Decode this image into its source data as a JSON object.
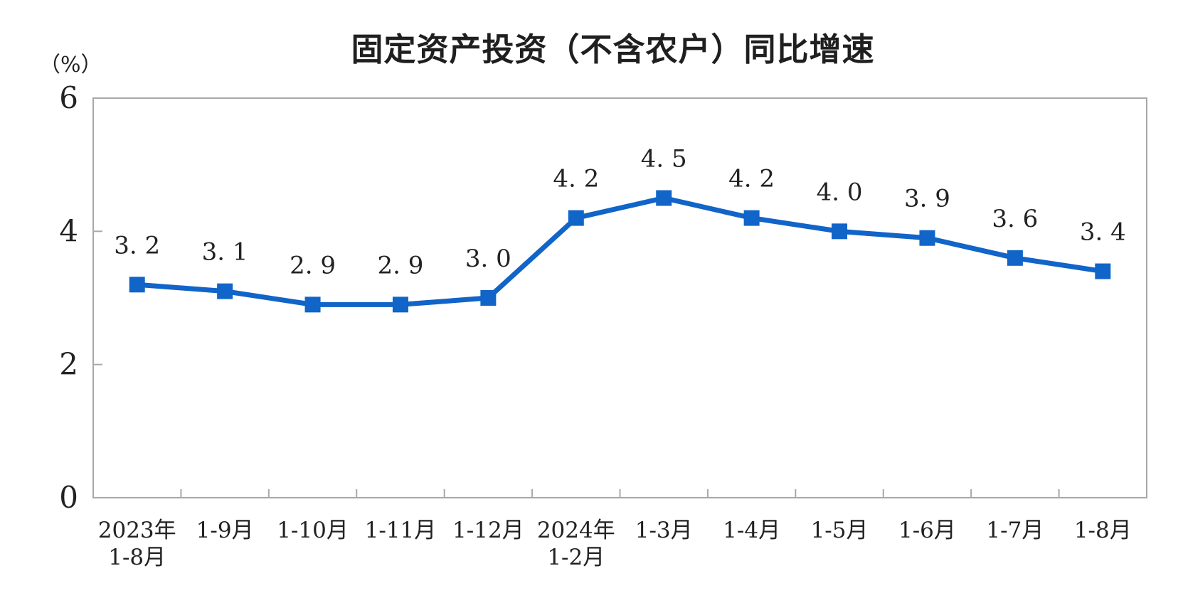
{
  "chart_data": {
    "type": "line",
    "title": "固定资产投资（不含农户）同比增速",
    "unit": "（%）",
    "xlabel": "",
    "ylabel": "（%）",
    "categories": [
      "2023年\n1-8月",
      "1-9月",
      "1-10月",
      "1-11月",
      "1-12月",
      "2024年\n1-2月",
      "1-3月",
      "1-4月",
      "1-5月",
      "1-6月",
      "1-7月",
      "1-8月"
    ],
    "series": [
      {
        "name": "固定资产投资（不含农户）同比增速",
        "values": [
          3.2,
          3.1,
          2.9,
          2.9,
          3.0,
          4.2,
          4.5,
          4.2,
          4.0,
          3.9,
          3.6,
          3.4
        ]
      }
    ],
    "point_labels": [
      "3. 2",
      "3. 1",
      "2. 9",
      "2. 9",
      "3. 0",
      "4. 2",
      "4. 5",
      "4. 2",
      "4. 0",
      "3. 9",
      "3. 6",
      "3. 4"
    ],
    "ylim": [
      0,
      6
    ],
    "yticks": [
      0,
      2,
      4,
      6
    ],
    "grid": false,
    "legend": "none",
    "marker": "square",
    "line_color": "#1164C8",
    "axis_color": "#a8a8a8",
    "text_color": "#222222",
    "background": "#ffffff"
  }
}
